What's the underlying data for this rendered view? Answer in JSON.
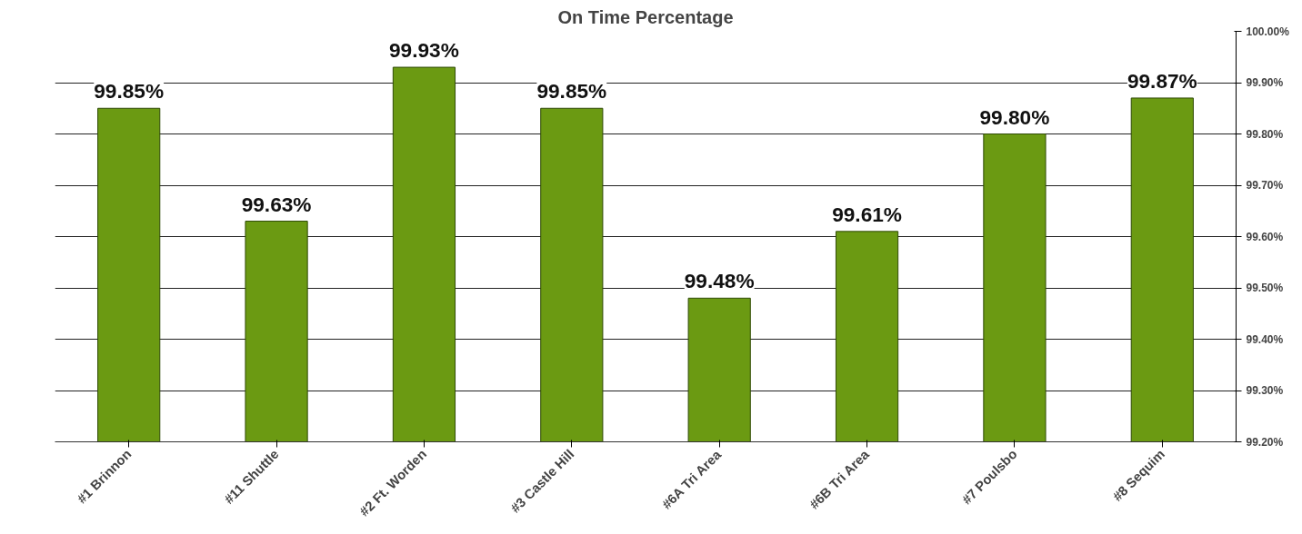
{
  "chart_data": {
    "type": "bar",
    "title": "On Time Percentage",
    "categories": [
      "#1 Brinnon",
      "#11 Shuttle",
      "#2 Ft. Worden",
      "#3 Castle Hill",
      "#6A Tri Area",
      "#6B Tri Area",
      "#7 Poulsbo",
      "#8 Sequim"
    ],
    "values": [
      99.85,
      99.63,
      99.93,
      99.85,
      99.48,
      99.61,
      99.8,
      99.87
    ],
    "value_labels": [
      "99.85%",
      "99.63%",
      "99.93%",
      "99.85%",
      "99.48%",
      "99.61%",
      "99.80%",
      "99.87%"
    ],
    "color": "#6b9a12",
    "ylim": [
      99.2,
      100.0
    ],
    "yticks": [
      {
        "value": 99.2,
        "label": "99.20%"
      },
      {
        "value": 99.3,
        "label": "99.30%"
      },
      {
        "value": 99.4,
        "label": "99.40%"
      },
      {
        "value": 99.5,
        "label": "99.50%"
      },
      {
        "value": 99.6,
        "label": "99.60%"
      },
      {
        "value": 99.7,
        "label": "99.70%"
      },
      {
        "value": 99.8,
        "label": "99.80%"
      },
      {
        "value": 99.9,
        "label": "99.90%"
      },
      {
        "value": 100.0,
        "label": "100.00%"
      }
    ],
    "grid": "y"
  }
}
